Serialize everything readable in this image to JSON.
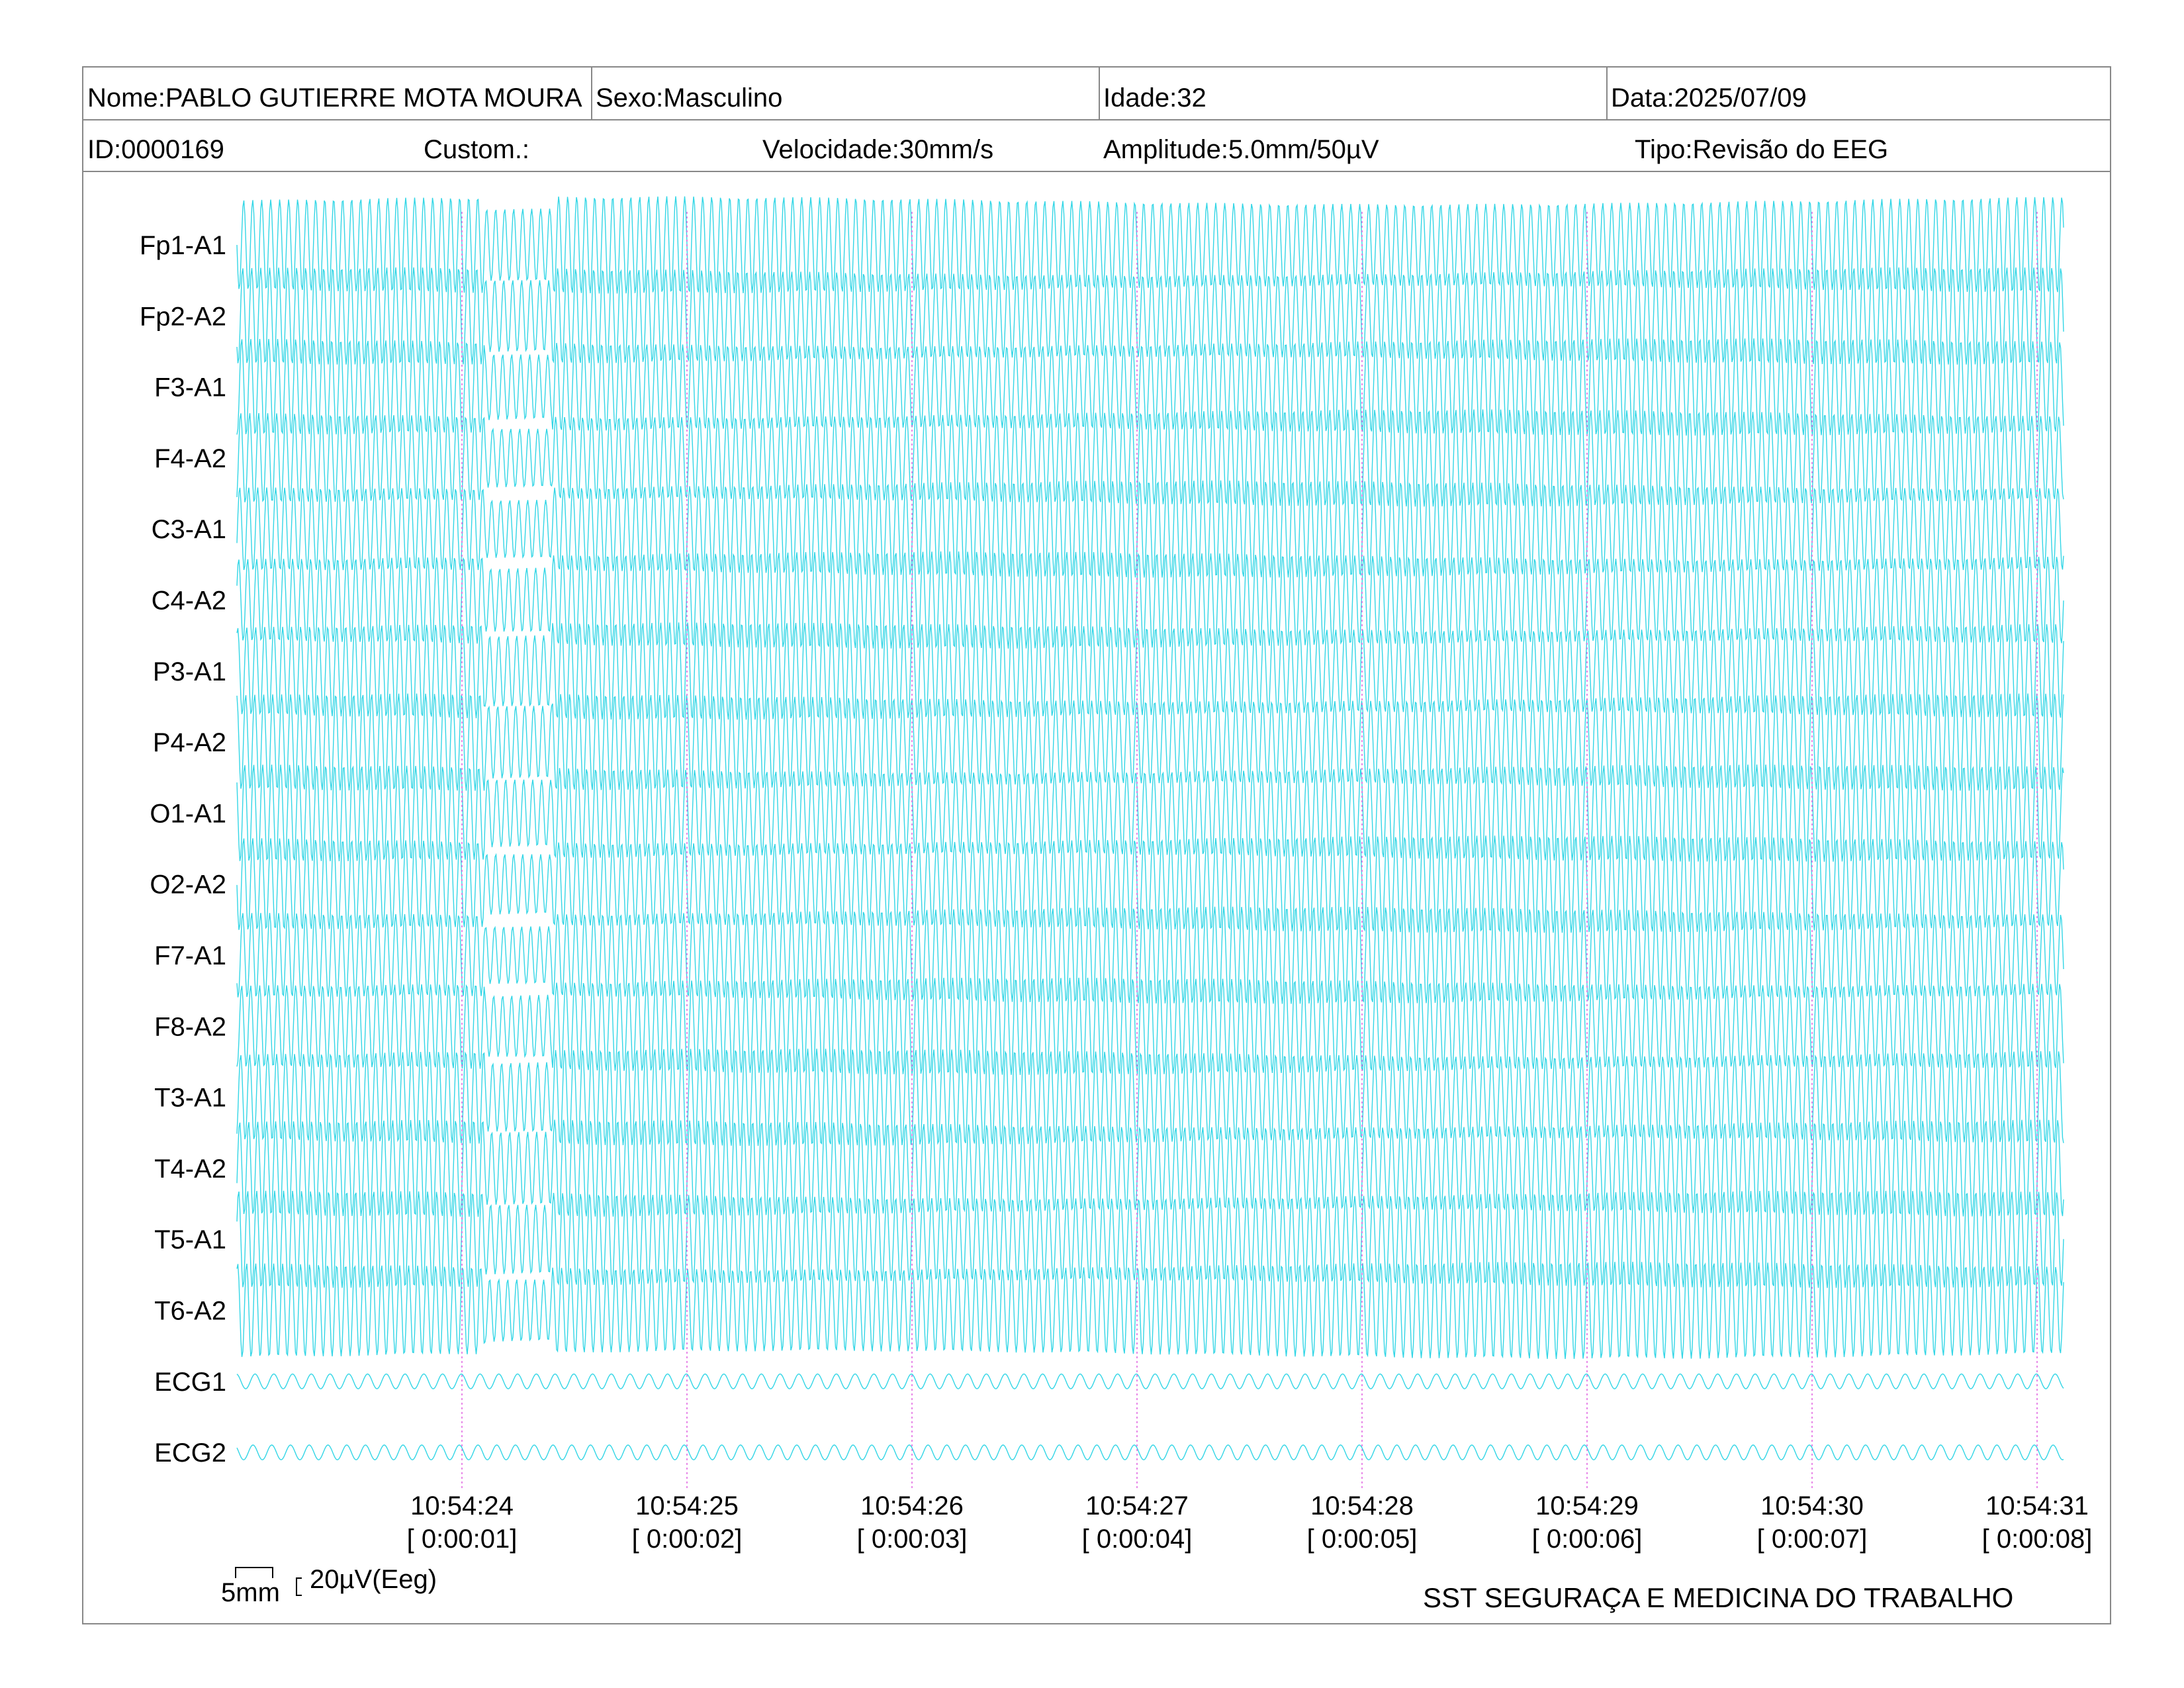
{
  "header": {
    "nome": "Nome:PABLO GUTIERRE MOTA MOURA",
    "sexo": "Sexo:Masculino",
    "idade": "Idade:32",
    "data": "Data:2025/07/09",
    "id": "ID:0000169",
    "custom": "Custom.:",
    "velocidade": "Velocidade:30mm/s",
    "amplitude": "Amplitude:5.0mm/50µV",
    "tipo": "Tipo:Revisão do EEG"
  },
  "scale": {
    "time_label": "5mm",
    "amp_label": "20µV(Eeg)"
  },
  "footer": {
    "brand": "SST SEGURAÇA E MEDICINA DO TRABALHO"
  },
  "colors": {
    "trace": "#33d6e6",
    "marker": "#e060e0",
    "frame": "#888888"
  },
  "chart_data": {
    "type": "line",
    "title": "",
    "xlabel": "",
    "ylabel": "",
    "channels": [
      "Fp1-A1",
      "Fp2-A2",
      "F3-A1",
      "F4-A2",
      "C3-A1",
      "C4-A2",
      "P3-A1",
      "P4-A2",
      "O1-A1",
      "O2-A2",
      "F7-A1",
      "F8-A2",
      "T3-A1",
      "T4-A2",
      "T5-A1",
      "T6-A2",
      "ECG1",
      "ECG2"
    ],
    "time_markers": [
      {
        "clock": "10:54:24",
        "elapsed": "[ 0:00:01]",
        "seconds": 1
      },
      {
        "clock": "10:54:25",
        "elapsed": "[ 0:00:02]",
        "seconds": 2
      },
      {
        "clock": "10:54:26",
        "elapsed": "[ 0:00:03]",
        "seconds": 3
      },
      {
        "clock": "10:54:27",
        "elapsed": "[ 0:00:04]",
        "seconds": 4
      },
      {
        "clock": "10:54:28",
        "elapsed": "[ 0:00:05]",
        "seconds": 5
      },
      {
        "clock": "10:54:29",
        "elapsed": "[ 0:00:06]",
        "seconds": 6
      },
      {
        "clock": "10:54:30",
        "elapsed": "[ 0:00:07]",
        "seconds": 7
      },
      {
        "clock": "10:54:31",
        "elapsed": "[ 0:00:08]",
        "seconds": 8
      }
    ],
    "time_range_s": [
      0,
      8.1
    ],
    "eeg_frequency_hz": 25,
    "ecg_frequency_hz": 12,
    "eeg_amplitude_uv": 70,
    "ecg_amplitude_uv": 8,
    "legend": "none",
    "grid": false
  }
}
